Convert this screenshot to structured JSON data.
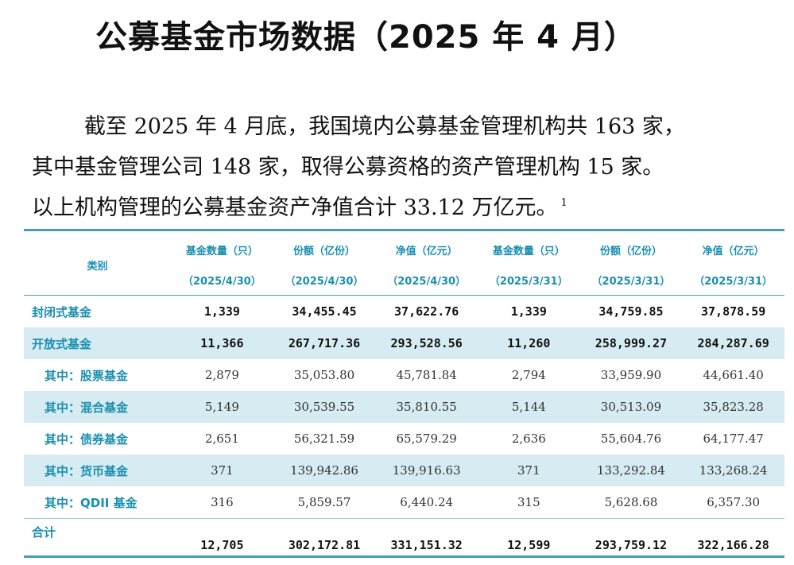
{
  "title": "公募基金市场数据（2025 年 4 月）",
  "intro": {
    "line1": "截至 2025 年 4 月底，我国境内公募基金管理机构共 163 家，",
    "line2": "其中基金管理公司 148 家，取得公募资格的资产管理机构 15 家。",
    "line3": "以上机构管理的公募基金资产净值合计 33.12 万亿元。",
    "footnote": "1"
  },
  "table": {
    "category_header": "类别",
    "columns": [
      {
        "label": "基金数量（只）",
        "date": "（2025/4/30）"
      },
      {
        "label": "份额（亿份）",
        "date": "（2025/4/30）"
      },
      {
        "label": "净值（亿元）",
        "date": "（2025/4/30）"
      },
      {
        "label": "基金数量（只）",
        "date": "（2025/3/31）"
      },
      {
        "label": "份额（亿份）",
        "date": "（2025/3/31）"
      },
      {
        "label": "净值（亿元）",
        "date": "（2025/3/31）"
      }
    ],
    "rows": [
      {
        "label": "封闭式基金",
        "values": [
          "1,339",
          "34,455.45",
          "37,622.76",
          "1,339",
          "34,759.85",
          "37,878.59"
        ]
      },
      {
        "label": "开放式基金",
        "values": [
          "11,366",
          "267,717.36",
          "293,528.56",
          "11,260",
          "258,999.27",
          "284,287.69"
        ]
      },
      {
        "label": "其中：股票基金",
        "values": [
          "2,879",
          "35,053.80",
          "45,781.84",
          "2,794",
          "33,959.90",
          "44,661.40"
        ]
      },
      {
        "label": "其中：混合基金",
        "values": [
          "5,149",
          "30,539.55",
          "35,810.55",
          "5,144",
          "30,513.09",
          "35,823.28"
        ]
      },
      {
        "label": "其中：债券基金",
        "values": [
          "2,651",
          "56,321.59",
          "65,579.29",
          "2,636",
          "55,604.76",
          "64,177.47"
        ]
      },
      {
        "label": "其中：货币基金",
        "values": [
          "371",
          "139,942.86",
          "139,916.63",
          "371",
          "133,292.84",
          "133,268.24"
        ]
      },
      {
        "label": "其中：QDII 基金",
        "values": [
          "316",
          "5,859.57",
          "6,440.24",
          "315",
          "5,628.68",
          "6,357.30"
        ]
      },
      {
        "label": "合计",
        "values": [
          "12,705",
          "302,172.81",
          "331,151.32",
          "12,599",
          "293,759.12",
          "322,166.28"
        ]
      }
    ]
  },
  "colors": {
    "header_text": "#1a8fb0",
    "row_highlight": "#d6ebf2",
    "rule": "#4a9cb3"
  }
}
